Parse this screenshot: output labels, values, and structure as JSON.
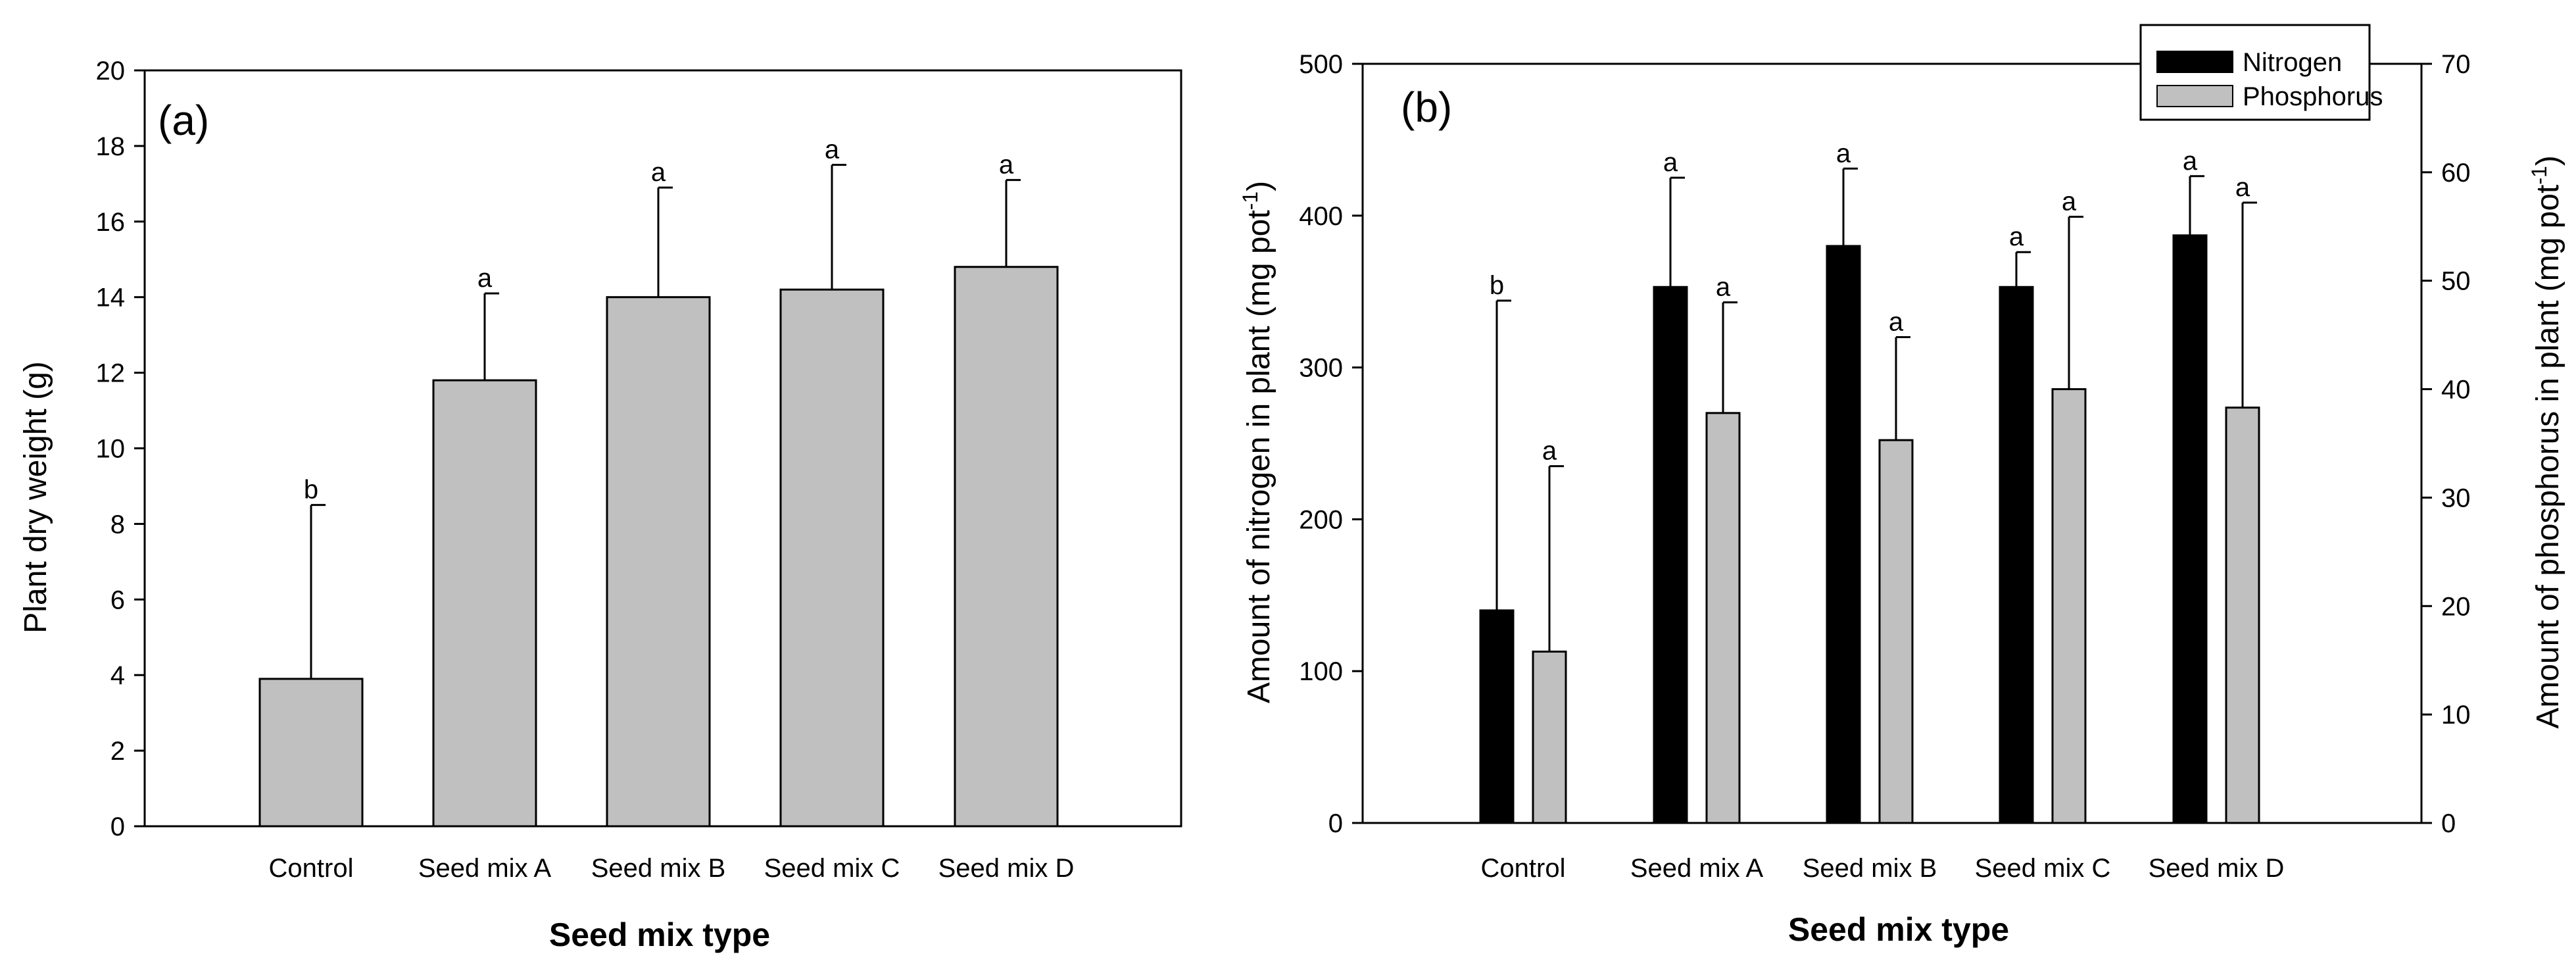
{
  "chart_data": [
    {
      "type": "bar",
      "panel_label": "(a)",
      "title": "",
      "xlabel": "Seed mix type",
      "ylabel": "Plant dry weight (g)",
      "ylim": [
        0,
        20
      ],
      "yticks": [
        "0",
        "2",
        "4",
        "6",
        "8",
        "10",
        "12",
        "14",
        "16",
        "18",
        "20"
      ],
      "categories": [
        "Control",
        "Seed mix A",
        "Seed mix B",
        "Seed mix C",
        "Seed mix D"
      ],
      "series": [
        {
          "name": "Plant dry weight",
          "color": "#c0c0c0",
          "values": [
            3.9,
            11.8,
            14.0,
            14.2,
            14.8
          ],
          "errors": [
            4.6,
            2.3,
            2.9,
            3.3,
            2.3
          ],
          "letters": [
            "b",
            "a",
            "a",
            "a",
            "a"
          ]
        }
      ]
    },
    {
      "type": "bar",
      "panel_label": "(b)",
      "title": "",
      "xlabel": "Seed mix type",
      "ylabel_left": {
        "main": "Amount of nitrogen in plant (mg pot",
        "sup": "-1",
        "end": ")"
      },
      "ylabel_right": {
        "main": "Amount of phosphorus in plant (mg pot",
        "sup": "-1",
        "end": ")"
      },
      "ylim_left": [
        0,
        500
      ],
      "ylim_right": [
        0,
        70
      ],
      "yticks_left": [
        "0",
        "100",
        "200",
        "300",
        "400",
        "500"
      ],
      "yticks_right": [
        "0",
        "10",
        "20",
        "30",
        "40",
        "50",
        "60",
        "70"
      ],
      "categories": [
        "Control",
        "Seed mix A",
        "Seed mix B",
        "Seed mix C",
        "Seed mix D"
      ],
      "legend_position": "top-right",
      "series": [
        {
          "name": "Nitrogen",
          "axis": "left",
          "color": "#000000",
          "values": [
            140,
            353,
            380,
            353,
            387
          ],
          "errors": [
            204,
            72,
            51,
            23,
            39
          ],
          "letters": [
            "b",
            "a",
            "a",
            "a",
            "a"
          ]
        },
        {
          "name": "Phosphorus",
          "axis": "right",
          "color": "#c0c0c0",
          "values": [
            15.8,
            37.8,
            35.3,
            40.0,
            38.3
          ],
          "errors": [
            17.1,
            10.2,
            9.5,
            15.9,
            18.9
          ],
          "letters": [
            "a",
            "a",
            "a",
            "a",
            "a"
          ]
        }
      ]
    }
  ]
}
